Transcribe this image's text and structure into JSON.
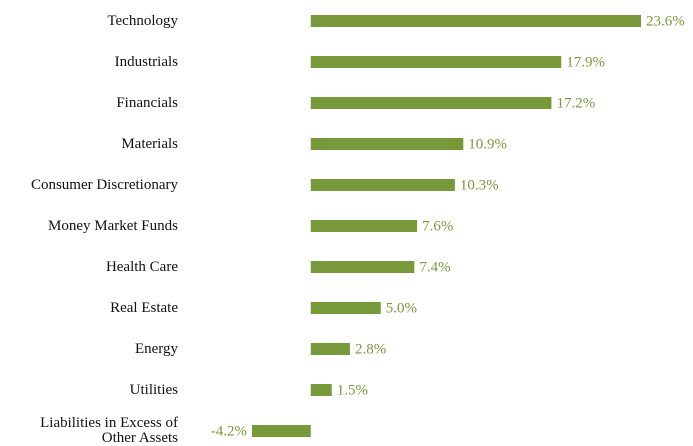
{
  "chart_data": {
    "type": "bar",
    "orientation": "horizontal",
    "categories": [
      "Technology",
      "Industrials",
      "Financials",
      "Materials",
      "Consumer Discretionary",
      "Money Market Funds",
      "Health Care",
      "Real Estate",
      "Energy",
      "Utilities",
      "Liabilities in Excess of Other Assets"
    ],
    "values": [
      23.6,
      17.9,
      17.2,
      10.9,
      10.3,
      7.6,
      7.4,
      5.0,
      2.8,
      1.5,
      -4.2
    ],
    "value_labels": [
      "23.6%",
      "17.9%",
      "17.2%",
      "10.9%",
      "10.3%",
      "7.6%",
      "7.4%",
      "5.0%",
      "2.8%",
      "1.5%",
      "-4.2%"
    ],
    "color": "#77993a",
    "label_color": "#7a9a3e"
  }
}
